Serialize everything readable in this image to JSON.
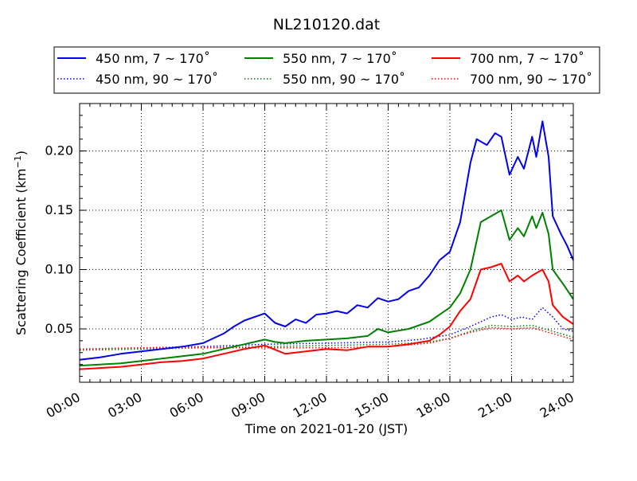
{
  "chart_data": {
    "type": "line",
    "title": "NL210120.dat",
    "xlabel": "Time on 2021-01-20 (JST)",
    "ylabel_main": "Scattering Coefficient (km",
    "ylabel_sup": "−1",
    "ylabel_close": ")",
    "xlim": [
      0,
      24
    ],
    "ylim": [
      0.005,
      0.24
    ],
    "grid": true,
    "legend_placement": "top, above plot, 3 columns",
    "x_ticks": [
      {
        "value": 0,
        "label": "00:00"
      },
      {
        "value": 3,
        "label": "03:00"
      },
      {
        "value": 6,
        "label": "06:00"
      },
      {
        "value": 9,
        "label": "09:00"
      },
      {
        "value": 12,
        "label": "12:00"
      },
      {
        "value": 15,
        "label": "15:00"
      },
      {
        "value": 18,
        "label": "18:00"
      },
      {
        "value": 21,
        "label": "21:00"
      },
      {
        "value": 24,
        "label": "24:00"
      }
    ],
    "y_ticks": [
      {
        "value": 0.05,
        "label": "0.05"
      },
      {
        "value": 0.1,
        "label": "0.10"
      },
      {
        "value": 0.15,
        "label": "0.15"
      },
      {
        "value": 0.2,
        "label": "0.20"
      }
    ],
    "series": [
      {
        "name": "450 nm, 7 ~ 170˚",
        "color": "#0000ee",
        "style": "solid",
        "points": [
          [
            0,
            0.024
          ],
          [
            1,
            0.026
          ],
          [
            2,
            0.029
          ],
          [
            3,
            0.031
          ],
          [
            4,
            0.033
          ],
          [
            5,
            0.035
          ],
          [
            6,
            0.038
          ],
          [
            7,
            0.046
          ],
          [
            7.5,
            0.052
          ],
          [
            8,
            0.057
          ],
          [
            8.5,
            0.06
          ],
          [
            9,
            0.063
          ],
          [
            9.5,
            0.055
          ],
          [
            10,
            0.052
          ],
          [
            10.5,
            0.058
          ],
          [
            11,
            0.055
          ],
          [
            11.5,
            0.062
          ],
          [
            12,
            0.063
          ],
          [
            12.5,
            0.065
          ],
          [
            13,
            0.063
          ],
          [
            13.5,
            0.07
          ],
          [
            14,
            0.068
          ],
          [
            14.5,
            0.076
          ],
          [
            15,
            0.073
          ],
          [
            15.5,
            0.075
          ],
          [
            16,
            0.082
          ],
          [
            16.5,
            0.085
          ],
          [
            17,
            0.095
          ],
          [
            17.5,
            0.108
          ],
          [
            18,
            0.115
          ],
          [
            18.5,
            0.14
          ],
          [
            19,
            0.19
          ],
          [
            19.3,
            0.21
          ],
          [
            19.8,
            0.205
          ],
          [
            20.2,
            0.215
          ],
          [
            20.5,
            0.212
          ],
          [
            20.9,
            0.18
          ],
          [
            21.3,
            0.195
          ],
          [
            21.6,
            0.185
          ],
          [
            22,
            0.212
          ],
          [
            22.2,
            0.195
          ],
          [
            22.5,
            0.225
          ],
          [
            22.8,
            0.195
          ],
          [
            23,
            0.145
          ],
          [
            23.4,
            0.13
          ],
          [
            23.7,
            0.12
          ],
          [
            24,
            0.108
          ]
        ]
      },
      {
        "name": "450 nm, 90 ~ 170˚",
        "color": "#0000ee",
        "style": "dotted",
        "points": [
          [
            0,
            0.033
          ],
          [
            3,
            0.034
          ],
          [
            6,
            0.035
          ],
          [
            9,
            0.037
          ],
          [
            12,
            0.038
          ],
          [
            15,
            0.039
          ],
          [
            16.5,
            0.041
          ],
          [
            18,
            0.045
          ],
          [
            19,
            0.052
          ],
          [
            20,
            0.06
          ],
          [
            20.5,
            0.062
          ],
          [
            21,
            0.058
          ],
          [
            21.5,
            0.06
          ],
          [
            22,
            0.058
          ],
          [
            22.5,
            0.068
          ],
          [
            23,
            0.06
          ],
          [
            23.5,
            0.05
          ],
          [
            24,
            0.048
          ]
        ]
      },
      {
        "name": "550 nm, 7 ~ 170˚",
        "color": "#008000",
        "style": "solid",
        "points": [
          [
            0,
            0.019
          ],
          [
            1,
            0.02
          ],
          [
            2,
            0.021
          ],
          [
            3,
            0.023
          ],
          [
            4,
            0.025
          ],
          [
            5,
            0.027
          ],
          [
            6,
            0.029
          ],
          [
            7,
            0.033
          ],
          [
            8,
            0.037
          ],
          [
            9,
            0.041
          ],
          [
            9.5,
            0.039
          ],
          [
            10,
            0.038
          ],
          [
            11,
            0.04
          ],
          [
            12,
            0.041
          ],
          [
            13,
            0.042
          ],
          [
            14,
            0.044
          ],
          [
            14.5,
            0.05
          ],
          [
            15,
            0.047
          ],
          [
            16,
            0.05
          ],
          [
            17,
            0.056
          ],
          [
            17.5,
            0.062
          ],
          [
            18,
            0.068
          ],
          [
            18.5,
            0.08
          ],
          [
            19,
            0.1
          ],
          [
            19.5,
            0.14
          ],
          [
            20,
            0.145
          ],
          [
            20.5,
            0.15
          ],
          [
            20.9,
            0.125
          ],
          [
            21.3,
            0.135
          ],
          [
            21.6,
            0.128
          ],
          [
            22,
            0.145
          ],
          [
            22.2,
            0.135
          ],
          [
            22.5,
            0.148
          ],
          [
            22.8,
            0.13
          ],
          [
            23,
            0.1
          ],
          [
            23.5,
            0.088
          ],
          [
            24,
            0.075
          ]
        ]
      },
      {
        "name": "550 nm, 90 ~ 170˚",
        "color": "#008000",
        "style": "dotted",
        "points": [
          [
            0,
            0.032
          ],
          [
            3,
            0.033
          ],
          [
            6,
            0.034
          ],
          [
            9,
            0.035
          ],
          [
            12,
            0.036
          ],
          [
            15,
            0.037
          ],
          [
            17,
            0.039
          ],
          [
            18,
            0.042
          ],
          [
            19,
            0.048
          ],
          [
            20,
            0.053
          ],
          [
            21,
            0.052
          ],
          [
            22,
            0.053
          ],
          [
            23,
            0.048
          ],
          [
            24,
            0.043
          ]
        ]
      },
      {
        "name": "700 nm, 7 ~ 170˚",
        "color": "#ff0000",
        "style": "solid",
        "points": [
          [
            0,
            0.016
          ],
          [
            1,
            0.017
          ],
          [
            2,
            0.018
          ],
          [
            3,
            0.02
          ],
          [
            4,
            0.022
          ],
          [
            5,
            0.023
          ],
          [
            6,
            0.025
          ],
          [
            7,
            0.029
          ],
          [
            8,
            0.033
          ],
          [
            9,
            0.036
          ],
          [
            10,
            0.029
          ],
          [
            11,
            0.031
          ],
          [
            12,
            0.033
          ],
          [
            13,
            0.032
          ],
          [
            14,
            0.035
          ],
          [
            15,
            0.035
          ],
          [
            16,
            0.037
          ],
          [
            17,
            0.04
          ],
          [
            17.5,
            0.045
          ],
          [
            18,
            0.052
          ],
          [
            18.5,
            0.065
          ],
          [
            19,
            0.075
          ],
          [
            19.5,
            0.1
          ],
          [
            20,
            0.102
          ],
          [
            20.5,
            0.105
          ],
          [
            20.9,
            0.09
          ],
          [
            21.3,
            0.095
          ],
          [
            21.6,
            0.09
          ],
          [
            22,
            0.095
          ],
          [
            22.5,
            0.1
          ],
          [
            22.8,
            0.09
          ],
          [
            23,
            0.07
          ],
          [
            23.5,
            0.06
          ],
          [
            24,
            0.054
          ]
        ]
      },
      {
        "name": "700 nm, 90 ~ 170˚",
        "color": "#ff0000",
        "style": "dotted",
        "points": [
          [
            0,
            0.033
          ],
          [
            3,
            0.034
          ],
          [
            6,
            0.034
          ],
          [
            9,
            0.034
          ],
          [
            12,
            0.034
          ],
          [
            15,
            0.035
          ],
          [
            17,
            0.038
          ],
          [
            18,
            0.042
          ],
          [
            19,
            0.047
          ],
          [
            20,
            0.051
          ],
          [
            21,
            0.05
          ],
          [
            22,
            0.051
          ],
          [
            23,
            0.046
          ],
          [
            24,
            0.041
          ]
        ]
      }
    ]
  }
}
